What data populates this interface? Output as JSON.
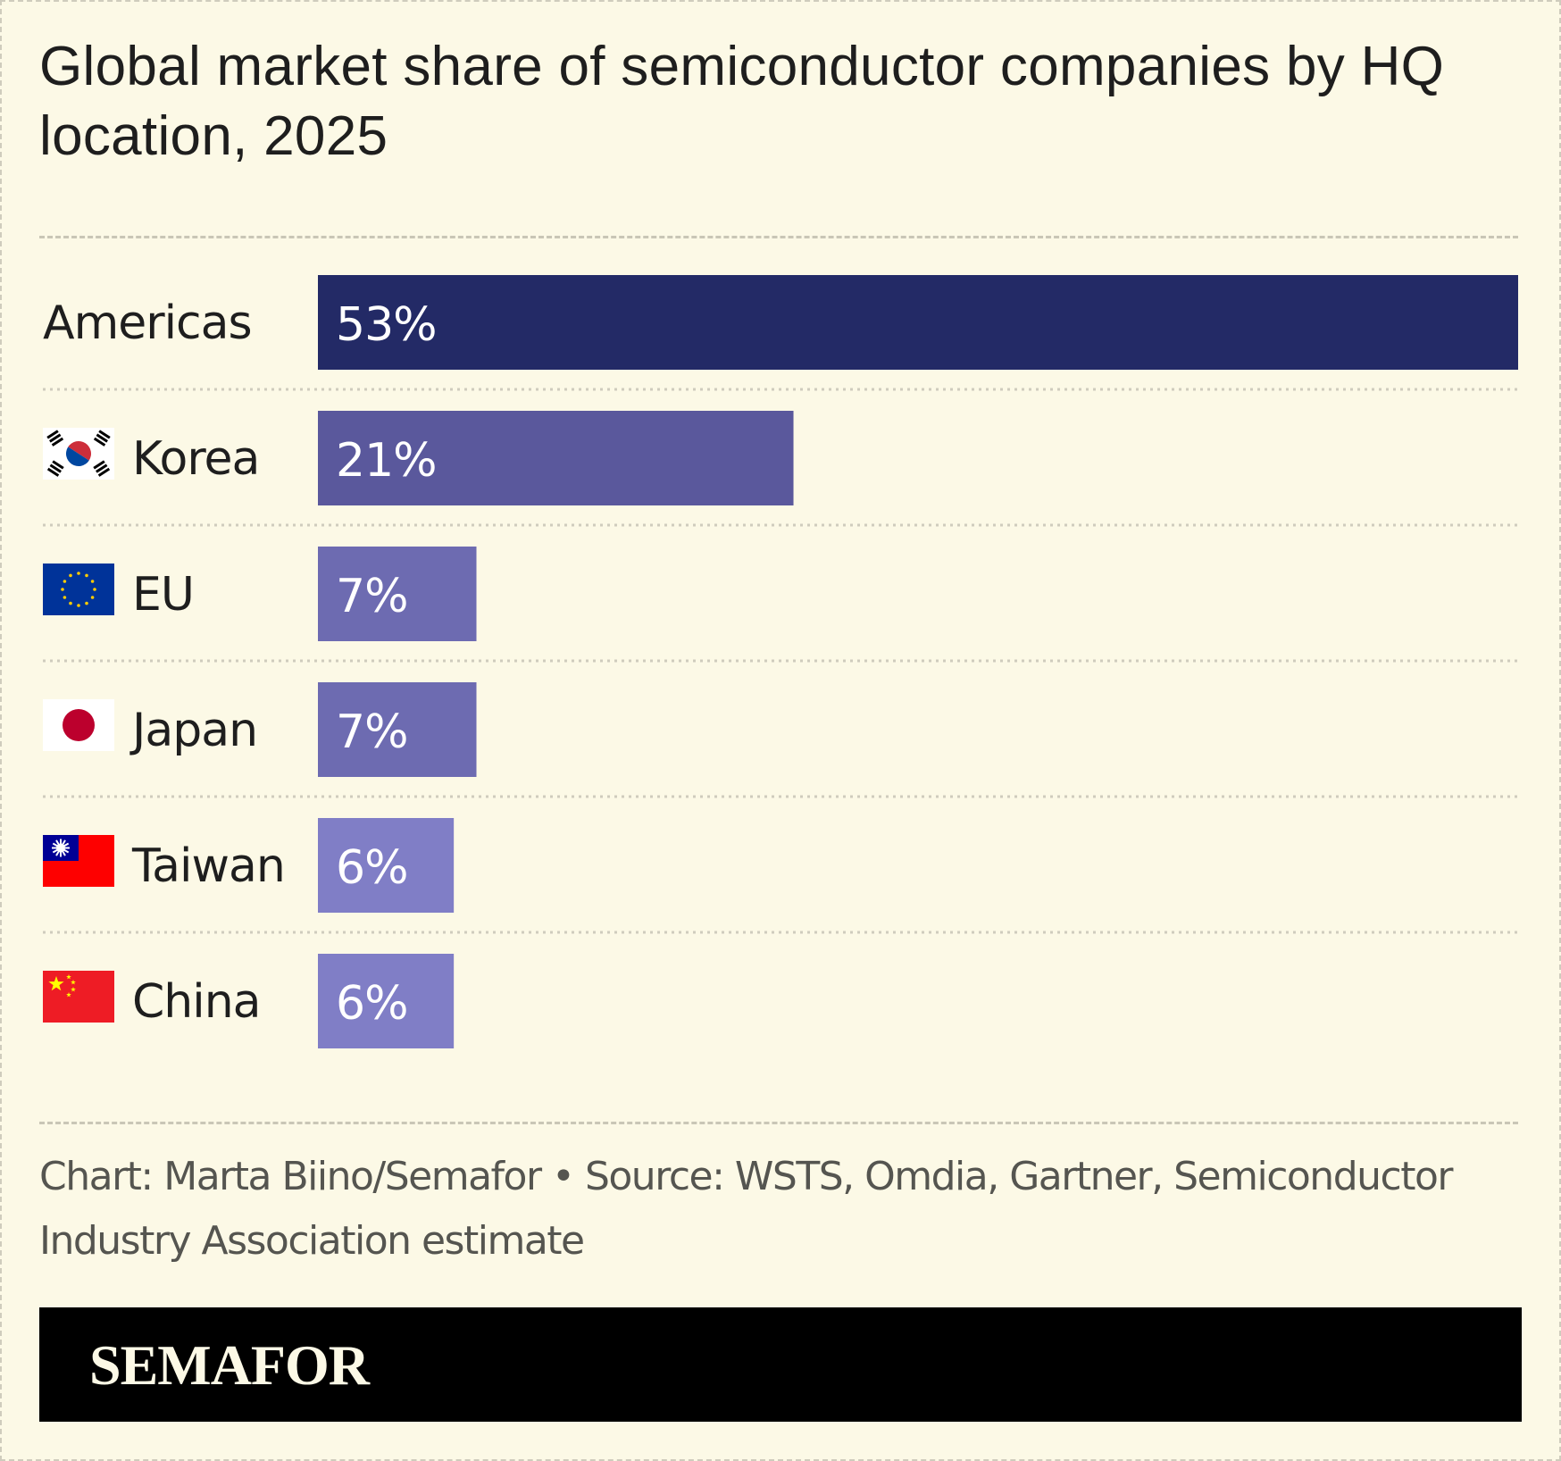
{
  "title": "Global market share of semiconductor companies by HQ location, 2025",
  "credit": "Chart: Marta Biino/Semafor • Source: WSTS, Omdia, Gartner, Semiconductor Industry Association estimate",
  "brand": "SEMAFOR",
  "chart_data": {
    "type": "bar",
    "orientation": "horizontal",
    "categories": [
      "Americas",
      "Korea",
      "EU",
      "Japan",
      "Taiwan",
      "China"
    ],
    "values": [
      53,
      21,
      7,
      7,
      6,
      6
    ],
    "value_labels": [
      "53%",
      "21%",
      "7%",
      "7%",
      "6%",
      "6%"
    ],
    "flags": [
      null,
      "south-korea-flag",
      "eu-flag",
      "japan-flag",
      "taiwan-flag",
      "china-flag"
    ],
    "bar_colors": [
      "#232a66",
      "#5a589c",
      "#6d6bb1",
      "#6d6bb1",
      "#807ec6",
      "#807ec6"
    ],
    "xlim": [
      0,
      53
    ],
    "grid": false,
    "legend": "none"
  },
  "colors": {
    "background": "#fcf9e6",
    "text": "#1e1e1e",
    "credit_text": "#555550",
    "footer_bg": "#000000",
    "logo_text": "#fcf9e6"
  }
}
